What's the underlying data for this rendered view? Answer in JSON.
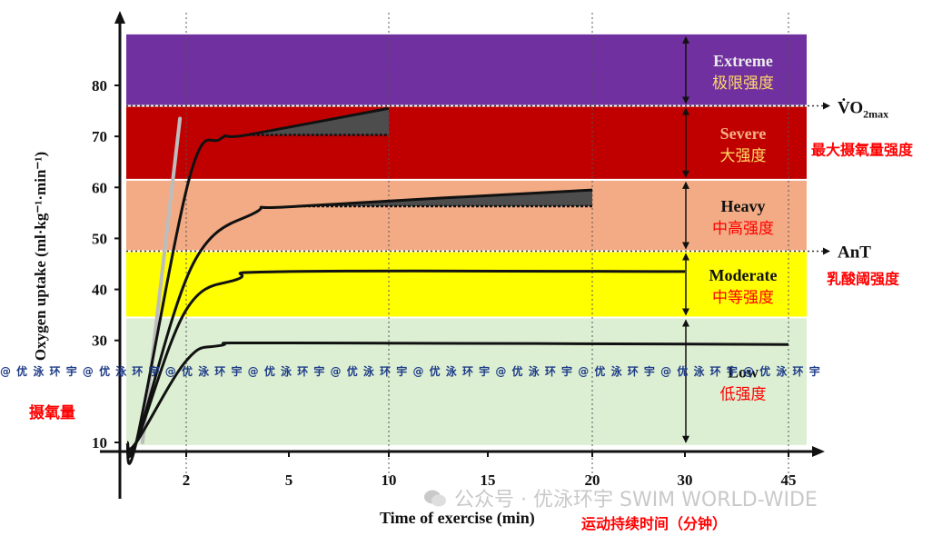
{
  "chart_data": {
    "type": "line",
    "xlabel": "Time of exercise (min)",
    "xlabel_cn": "运动持续时间（分钟）",
    "ylabel": "Oxygen uptake (ml·kg⁻¹·min⁻¹)",
    "ylabel_cn": "摄氧量",
    "x_ticks": [
      "2",
      "5",
      "10",
      "15",
      "20",
      "30",
      "45"
    ],
    "y_ticks": [
      10,
      30,
      40,
      50,
      60,
      70,
      80
    ],
    "ylim": [
      5,
      90
    ],
    "grid": "vertical dotted lines at 2, 10, 20, 45",
    "thresholds": [
      {
        "label": "V̇O2max",
        "label_main": "V̇O",
        "label_sub": "2max",
        "value": 76,
        "label_cn": "最大摄氧量强度"
      },
      {
        "label": "AnT",
        "value": 47.5,
        "label_cn": "乳酸阈强度"
      }
    ],
    "zones": [
      {
        "name": "Extreme",
        "name_cn": "极限强度",
        "from": 76,
        "to": 90,
        "color": "#7030a0"
      },
      {
        "name": "Severe",
        "name_cn": "大强度",
        "from": 61.5,
        "to": 76,
        "color": "#c00000"
      },
      {
        "name": "Heavy",
        "name_cn": "中高强度",
        "from": 47.5,
        "to": 61.5,
        "color": "#f2ab84"
      },
      {
        "name": "Moderate",
        "name_cn": "中等强度",
        "from": 34.5,
        "to": 47.5,
        "color": "#ffff00"
      },
      {
        "name": "Low",
        "name_cn": "低强度",
        "from": 9.5,
        "to": 34.5,
        "color": "#dcefd3"
      }
    ],
    "series": [
      {
        "intensity": "Low",
        "points": [
          [
            0.5,
            10
          ],
          [
            1.2,
            10
          ],
          [
            2.0,
            26
          ],
          [
            3.0,
            29
          ],
          [
            5.0,
            29.5
          ],
          [
            45,
            29.2
          ]
        ]
      },
      {
        "intensity": "Moderate",
        "points": [
          [
            0.5,
            10
          ],
          [
            1.2,
            10
          ],
          [
            2.0,
            36
          ],
          [
            3.5,
            42
          ],
          [
            5.0,
            43.5
          ],
          [
            30,
            43.5
          ]
        ]
      },
      {
        "intensity": "Heavy",
        "points": [
          [
            0.5,
            10
          ],
          [
            1.2,
            10
          ],
          [
            2.2,
            45
          ],
          [
            4.0,
            55
          ],
          [
            5.5,
            56.3
          ],
          [
            20,
            59.5
          ]
        ]
      },
      {
        "intensity": "Severe",
        "points": [
          [
            0.5,
            10
          ],
          [
            1.2,
            10
          ],
          [
            2.1,
            62
          ],
          [
            3.0,
            69.5
          ],
          [
            3.8,
            70.3
          ],
          [
            10,
            75.5
          ]
        ]
      }
    ],
    "slow_component_baselines": [
      {
        "intensity": "Heavy",
        "y": 56.3,
        "x_from": 5.5,
        "x_to": 20
      },
      {
        "intensity": "Severe",
        "y": 70.3,
        "x_from": 3.8,
        "x_to": 10
      }
    ],
    "extrapolated_line": {
      "color": "#bdbdbd",
      "points": [
        [
          1.3,
          10
        ],
        [
          1.9,
          73.5
        ]
      ]
    }
  },
  "watermark": {
    "repeat_text": "@ 优 泳 环 宇 ",
    "brand": "公众号 · 优泳环宇 SWIM WORLD-WIDE"
  }
}
